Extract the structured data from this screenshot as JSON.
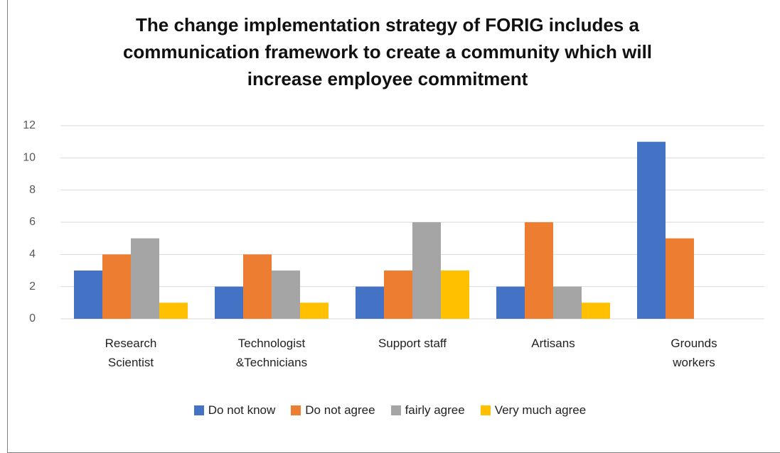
{
  "chart_data": {
    "type": "bar",
    "title": "The change implementation strategy of FORIG includes a communication framework to create a community which will increase employee commitment",
    "categories": [
      "Research Scientist",
      "Technologist &Technicians",
      "Support staff",
      "Artisans",
      "Grounds workers"
    ],
    "series": [
      {
        "name": "Do not know",
        "color": "#4472c4",
        "values": [
          3,
          2,
          2,
          2,
          11
        ]
      },
      {
        "name": "Do not agree",
        "color": "#ed7d31",
        "values": [
          4,
          4,
          3,
          6,
          5
        ]
      },
      {
        "name": "fairly agree",
        "color": "#a5a5a5",
        "values": [
          5,
          3,
          6,
          2,
          0
        ]
      },
      {
        "name": "Very much agree",
        "color": "#ffc000",
        "values": [
          1,
          1,
          3,
          1,
          0
        ]
      }
    ],
    "ylim": [
      0,
      12
    ],
    "yticks": [
      0,
      2,
      4,
      6,
      8,
      10,
      12
    ],
    "grid": true,
    "legend": "bottom"
  }
}
